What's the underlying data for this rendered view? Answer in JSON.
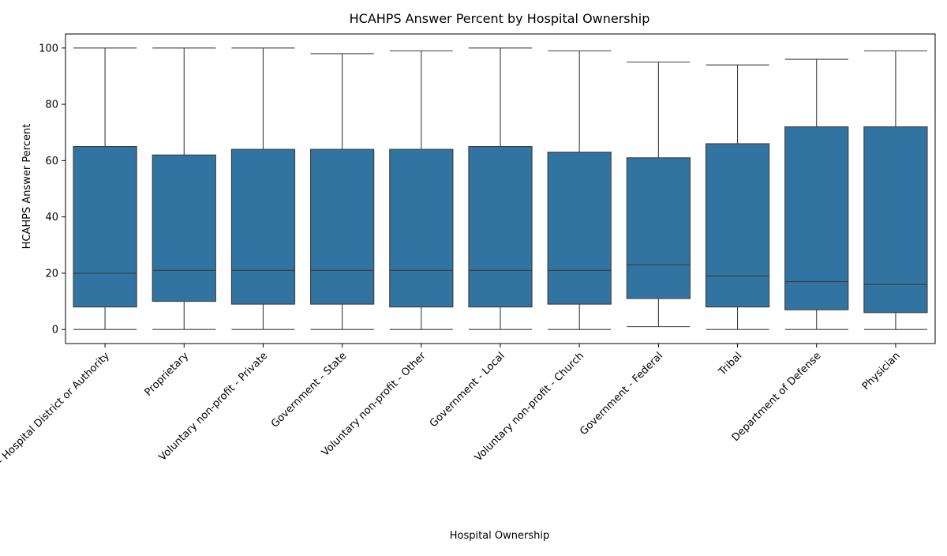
{
  "chart_data": {
    "type": "box",
    "title": "HCAHPS Answer Percent by Hospital Ownership",
    "xlabel": "Hospital Ownership",
    "ylabel": "HCAHPS Answer Percent",
    "ylim": [
      -5,
      105
    ],
    "yticks": [
      0,
      20,
      40,
      60,
      80,
      100
    ],
    "grid": false,
    "box_color": "#3274a1",
    "line_color": "#3d3d3d",
    "categories": [
      "Government - Hospital District or Authority",
      "Proprietary",
      "Voluntary non-profit - Private",
      "Government - State",
      "Voluntary non-profit - Other",
      "Government - Local",
      "Voluntary non-profit - Church",
      "Government - Federal",
      "Tribal",
      "Department of Defense",
      "Physician"
    ],
    "boxes": [
      {
        "whisker_low": 0,
        "q1": 8,
        "median": 20,
        "q3": 65,
        "whisker_high": 100
      },
      {
        "whisker_low": 0,
        "q1": 10,
        "median": 21,
        "q3": 62,
        "whisker_high": 100
      },
      {
        "whisker_low": 0,
        "q1": 9,
        "median": 21,
        "q3": 64,
        "whisker_high": 100
      },
      {
        "whisker_low": 0,
        "q1": 9,
        "median": 21,
        "q3": 64,
        "whisker_high": 98
      },
      {
        "whisker_low": 0,
        "q1": 8,
        "median": 21,
        "q3": 64,
        "whisker_high": 99
      },
      {
        "whisker_low": 0,
        "q1": 8,
        "median": 21,
        "q3": 65,
        "whisker_high": 100
      },
      {
        "whisker_low": 0,
        "q1": 9,
        "median": 21,
        "q3": 63,
        "whisker_high": 99
      },
      {
        "whisker_low": 1,
        "q1": 11,
        "median": 23,
        "q3": 61,
        "whisker_high": 95
      },
      {
        "whisker_low": 0,
        "q1": 8,
        "median": 19,
        "q3": 66,
        "whisker_high": 94
      },
      {
        "whisker_low": 0,
        "q1": 7,
        "median": 17,
        "q3": 72,
        "whisker_high": 96
      },
      {
        "whisker_low": 0,
        "q1": 6,
        "median": 16,
        "q3": 72,
        "whisker_high": 99
      }
    ]
  }
}
